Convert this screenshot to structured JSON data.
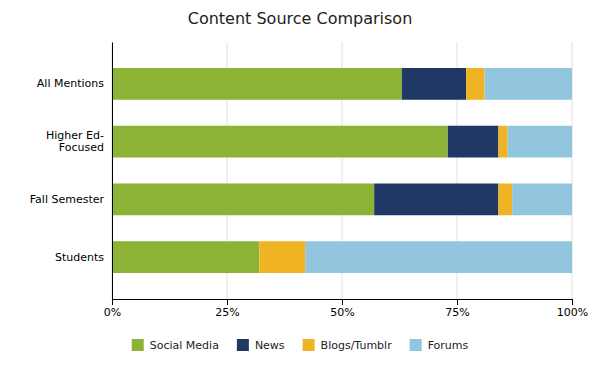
{
  "chart_data": {
    "type": "bar",
    "title": "Content Source Comparison",
    "orientation": "horizontal",
    "stacked": true,
    "categories": [
      "Students",
      "Fall Semester",
      "Higher Ed-\nFocused",
      "All Mentions"
    ],
    "series": [
      {
        "name": "Social Media",
        "color": "#8db336",
        "values": [
          32,
          57,
          73,
          63
        ]
      },
      {
        "name": "News",
        "color": "#1f3864",
        "values": [
          0,
          27,
          11,
          14
        ]
      },
      {
        "name": "Blogs/Tumblr",
        "color": "#f0b323",
        "values": [
          10,
          3,
          2,
          4
        ]
      },
      {
        "name": "Forums",
        "color": "#92c5de",
        "values": [
          58,
          13,
          14,
          19
        ]
      }
    ],
    "xlim": [
      0,
      100
    ],
    "xticks": [
      {
        "value": 0,
        "label": "0%"
      },
      {
        "value": 25,
        "label": "25%"
      },
      {
        "value": 50,
        "label": "50%"
      },
      {
        "value": 75,
        "label": "75%"
      },
      {
        "value": 100,
        "label": "100%"
      }
    ],
    "grid": true,
    "legend": "bottom"
  }
}
